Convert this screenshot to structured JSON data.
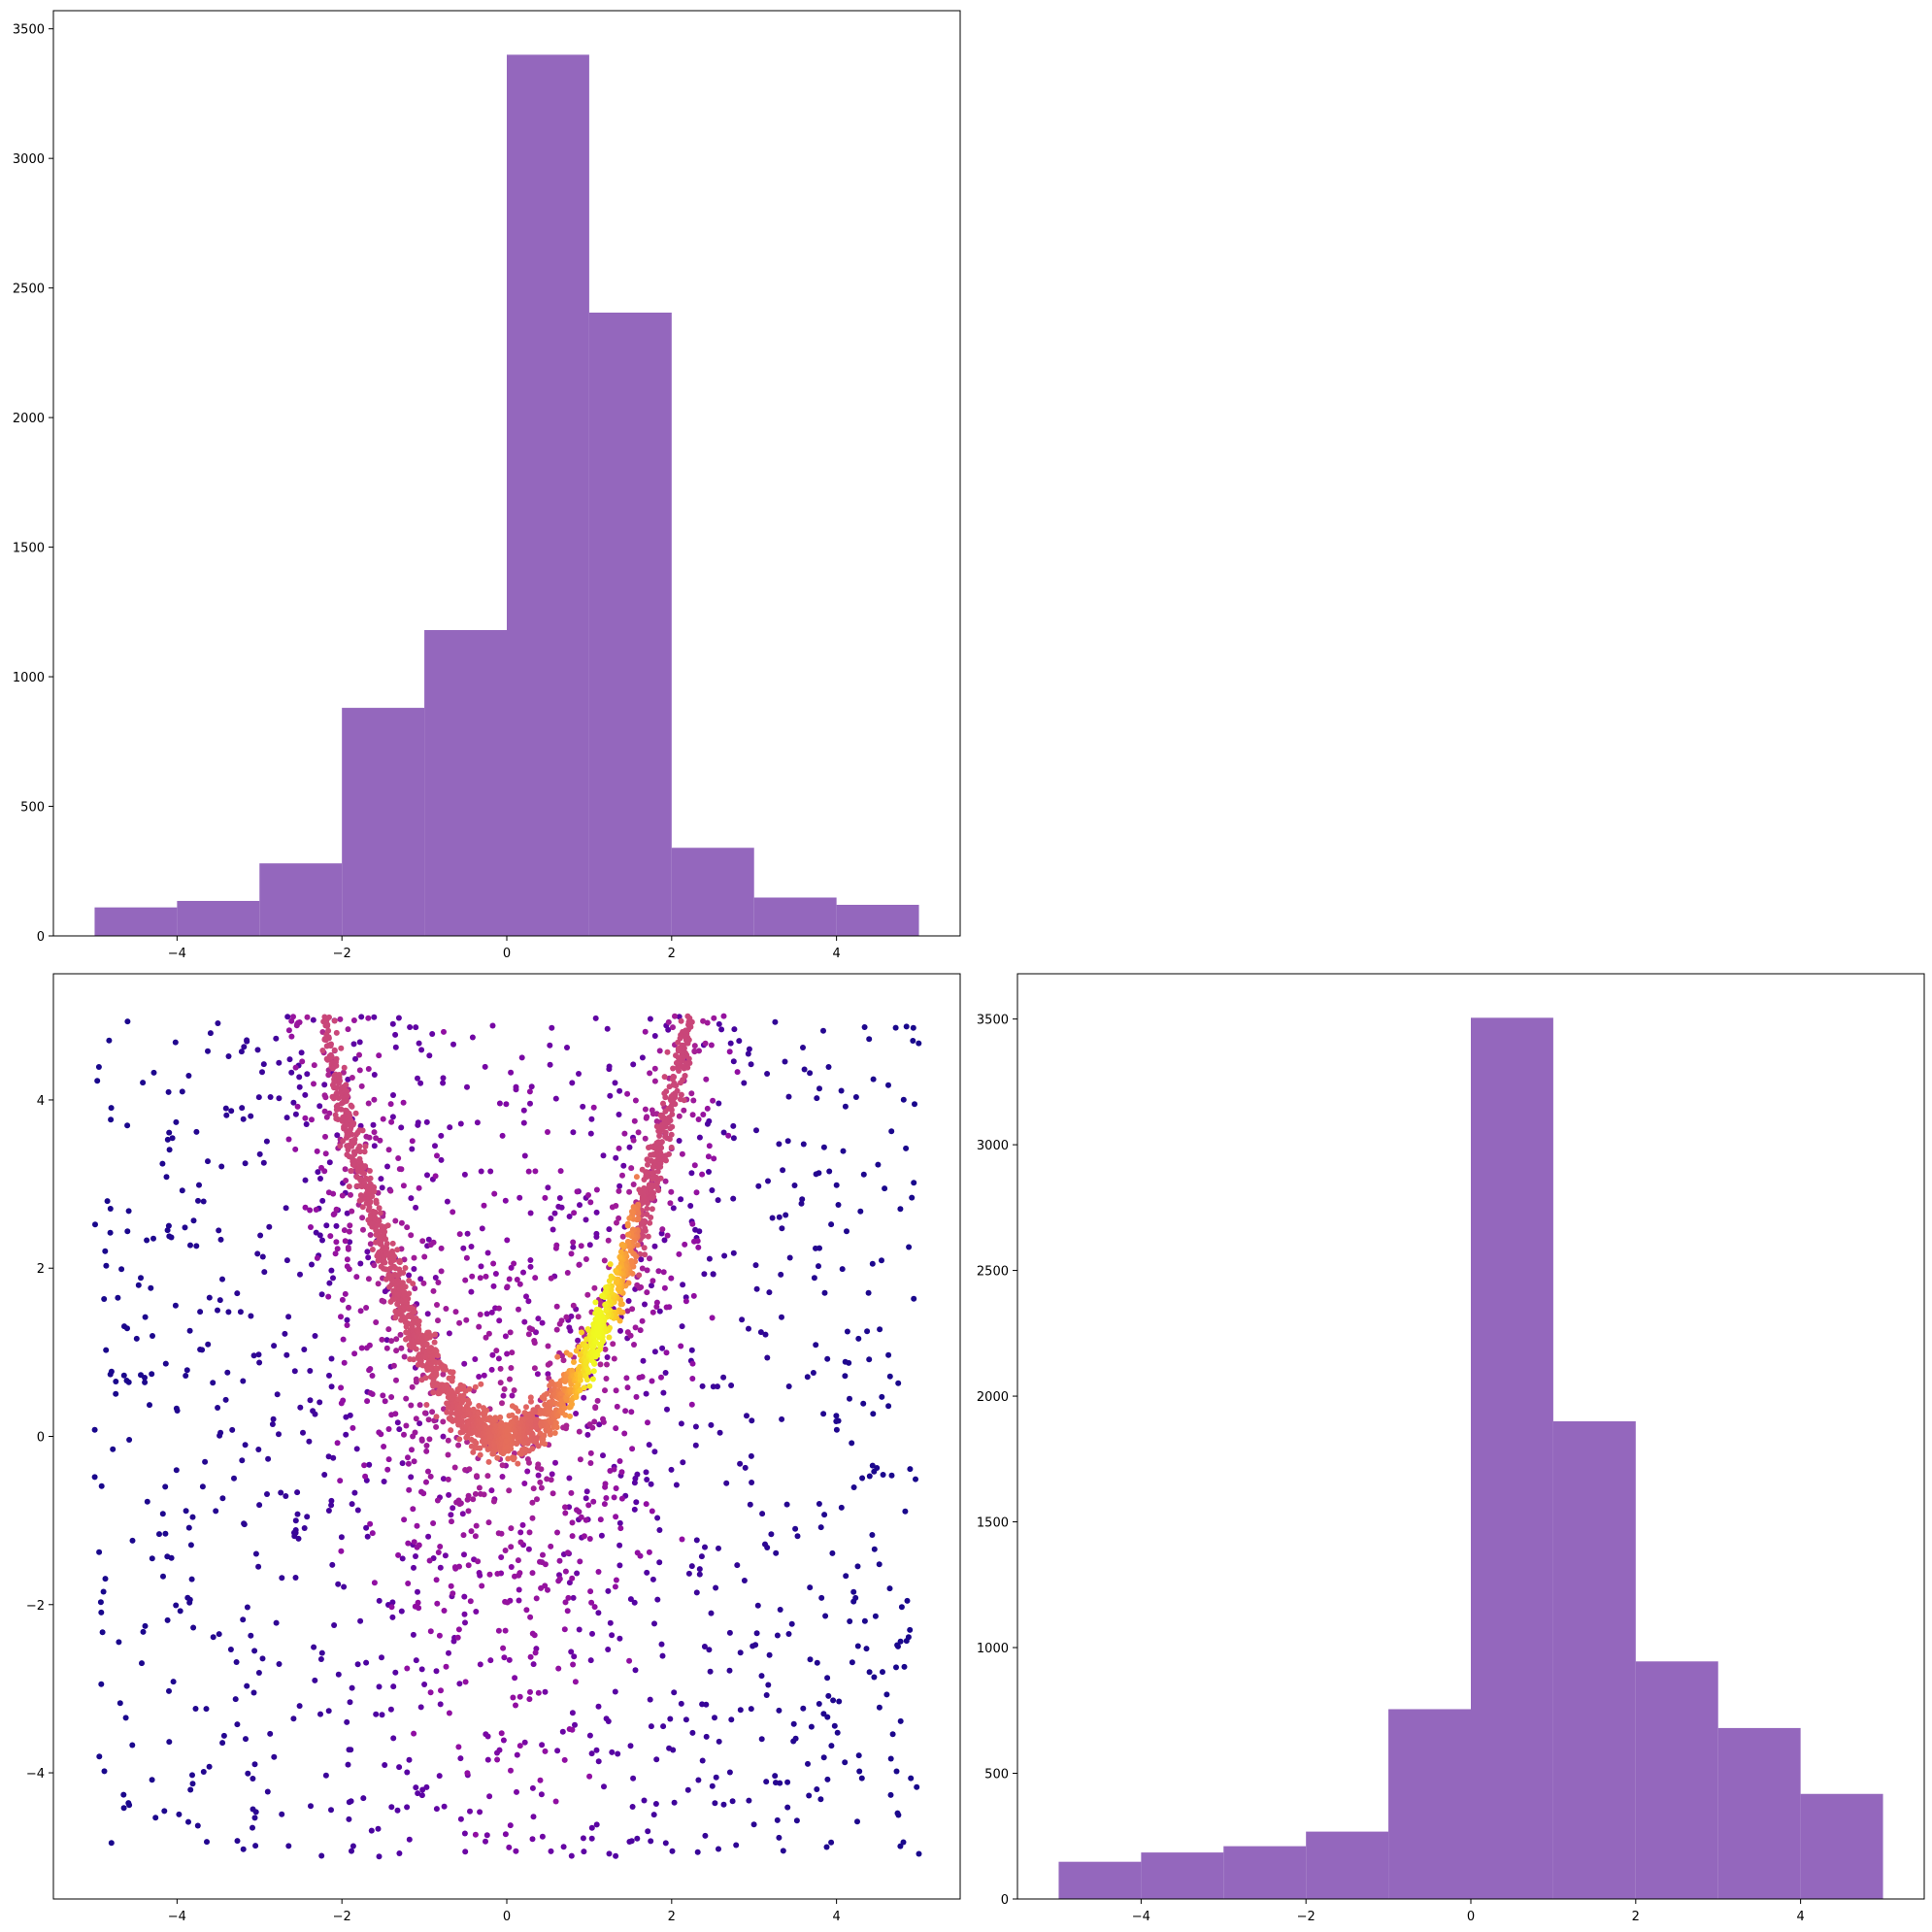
{
  "colors": {
    "bar_fill": "#9467bd",
    "axes_edge": "#000000",
    "colormap": "plasma"
  },
  "chart_data": [
    {
      "type": "bar",
      "position": "top-left",
      "title": "",
      "xlabel": "",
      "ylabel": "",
      "bin_edges": [
        -5,
        -4,
        -3,
        -2,
        -1,
        0,
        1,
        2,
        3,
        4,
        5
      ],
      "values": [
        110,
        135,
        280,
        880,
        1180,
        3400,
        2405,
        340,
        148,
        120
      ],
      "xlim": [
        -5.5,
        5.5
      ],
      "ylim": [
        0,
        3570
      ],
      "xticks": [
        -4,
        -2,
        0,
        2,
        4
      ],
      "xtick_labels": [
        "−4",
        "−2",
        "0",
        "2",
        "4"
      ],
      "yticks": [
        0,
        500,
        1000,
        1500,
        2000,
        2500,
        3000,
        3500
      ],
      "ytick_labels": [
        "0",
        "500",
        "1000",
        "1500",
        "2000",
        "2500",
        "3000",
        "3500"
      ]
    },
    {
      "type": "scatter",
      "position": "bottom-left",
      "title": "",
      "xlabel": "",
      "ylabel": "",
      "description_of_data": "density-colored scatter of points: a parabola-shaped dense band y ≈ x² for x in [-2.2, 2.2] plus uniform background points over [-5, 5] × [-5, 5]",
      "xlim": [
        -5.5,
        5.5
      ],
      "ylim": [
        -5.5,
        5.5
      ],
      "curve": {
        "form": "y = x^2",
        "x_range": [
          -2.25,
          2.25
        ]
      },
      "background_range": {
        "x": [
          -5,
          5
        ],
        "y": [
          -5,
          5
        ]
      },
      "xticks": [
        -4,
        -2,
        0,
        2,
        4
      ],
      "xtick_labels": [
        "−4",
        "−2",
        "0",
        "2",
        "4"
      ],
      "yticks": [
        -4,
        -2,
        0,
        2,
        4
      ],
      "ytick_labels": [
        "−4",
        "−2",
        "0",
        "2",
        "4"
      ]
    },
    {
      "type": "bar",
      "position": "bottom-right",
      "title": "",
      "xlabel": "",
      "ylabel": "",
      "bin_edges": [
        -5,
        -4,
        -3,
        -2,
        -1,
        0,
        1,
        2,
        3,
        4,
        5
      ],
      "values": [
        148,
        185,
        210,
        268,
        755,
        3505,
        1900,
        945,
        680,
        418
      ],
      "xlim": [
        -5.5,
        5.5
      ],
      "ylim": [
        0,
        3680
      ],
      "xticks": [
        -4,
        -2,
        0,
        2,
        4
      ],
      "xtick_labels": [
        "−4",
        "−2",
        "0",
        "2",
        "4"
      ],
      "yticks": [
        0,
        500,
        1000,
        1500,
        2000,
        2500,
        3000,
        3500
      ],
      "ytick_labels": [
        "0",
        "500",
        "1000",
        "1500",
        "2000",
        "2500",
        "3000",
        "3500"
      ]
    }
  ]
}
